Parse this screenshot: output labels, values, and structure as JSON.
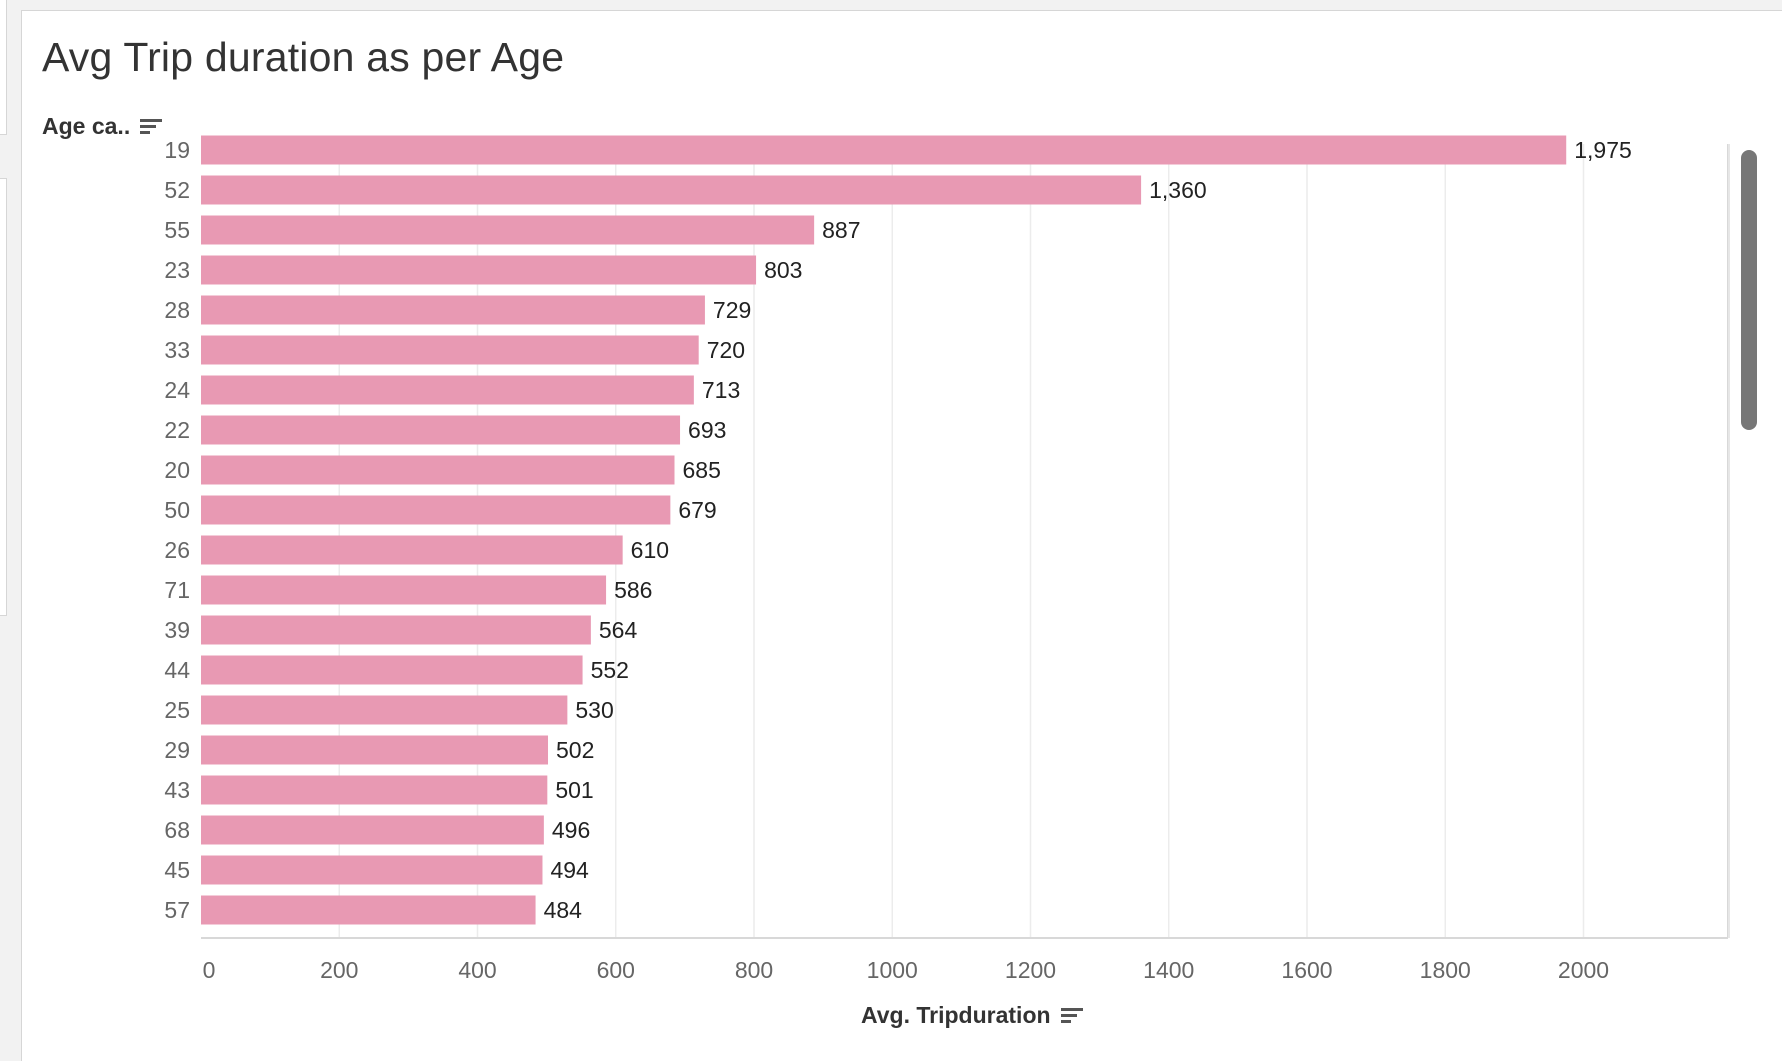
{
  "title": "Avg Trip duration as per Age",
  "y_header": "Age ca..",
  "x_header": "Avg. Tripduration",
  "icons": {
    "y_sort": "sort-icon",
    "x_sort": "sort-icon"
  },
  "colors": {
    "bar": "#e899b3",
    "grid": "#ececec",
    "axis_text": "#666666",
    "label_text": "#222222"
  },
  "chart_data": {
    "type": "bar",
    "orientation": "horizontal",
    "title": "Avg Trip duration as per Age",
    "xlabel": "Avg. Tripduration",
    "ylabel": "Age ca..",
    "xlim": [
      0,
      2200
    ],
    "x_ticks": [
      0,
      200,
      400,
      600,
      800,
      1000,
      1200,
      1400,
      1600,
      1800,
      2000
    ],
    "grid": true,
    "categories": [
      "19",
      "52",
      "55",
      "23",
      "28",
      "33",
      "24",
      "22",
      "20",
      "50",
      "26",
      "71",
      "39",
      "44",
      "25",
      "29",
      "43",
      "68",
      "45",
      "57"
    ],
    "values": [
      1975,
      1360,
      887,
      803,
      729,
      720,
      713,
      693,
      685,
      679,
      610,
      586,
      564,
      552,
      530,
      502,
      501,
      496,
      494,
      484
    ],
    "value_labels": [
      "1,975",
      "1,360",
      "887",
      "803",
      "729",
      "720",
      "713",
      "693",
      "685",
      "679",
      "610",
      "586",
      "564",
      "552",
      "530",
      "502",
      "501",
      "496",
      "494",
      "484"
    ]
  }
}
